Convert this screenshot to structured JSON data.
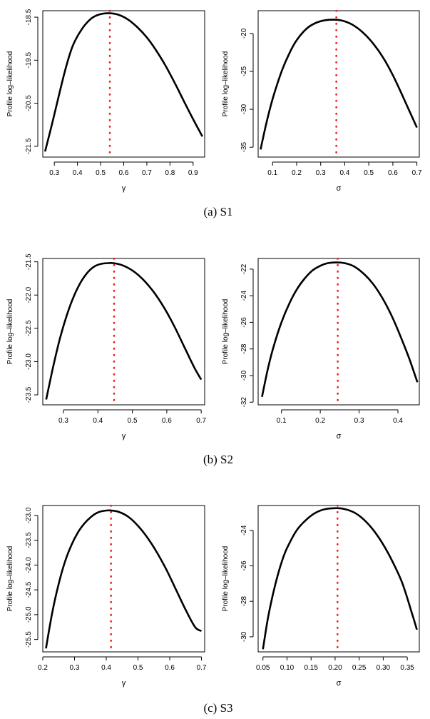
{
  "figure": {
    "ylabel": "Profile log–likelihood",
    "captions": [
      "(a) S1",
      "(b) S2",
      "(c) S3"
    ]
  },
  "colors": {
    "curve": "#000000",
    "mle_line": "#e8231e"
  },
  "chart_data": [
    {
      "id": "S1-gamma",
      "type": "line",
      "xlabel": "γ",
      "ylabel": "Profile log–likelihood",
      "xlim": [
        0.25,
        0.95
      ],
      "ylim": [
        -21.75,
        -18.35
      ],
      "xticks": [
        0.3,
        0.4,
        0.5,
        0.6,
        0.7,
        0.8,
        0.9
      ],
      "xtick_labels": [
        "0.3",
        "0.4",
        "0.5",
        "0.6",
        "0.7",
        "0.8",
        "0.9"
      ],
      "yticks": [
        -18.5,
        -19.5,
        -20.5,
        -21.5
      ],
      "ytick_labels": [
        "-18.5",
        "-19.5",
        "-20.5",
        "-21.5"
      ],
      "x": [
        0.26,
        0.29,
        0.32,
        0.35,
        0.38,
        0.42,
        0.46,
        0.5,
        0.54,
        0.58,
        0.62,
        0.66,
        0.7,
        0.74,
        0.78,
        0.82,
        0.86,
        0.9,
        0.94
      ],
      "y": [
        -21.62,
        -20.98,
        -20.31,
        -19.67,
        -19.16,
        -18.77,
        -18.53,
        -18.43,
        -18.41,
        -18.45,
        -18.56,
        -18.74,
        -18.97,
        -19.27,
        -19.62,
        -20.02,
        -20.45,
        -20.87,
        -21.27
      ],
      "mle": 0.54
    },
    {
      "id": "S1-sigma",
      "type": "line",
      "xlabel": "σ",
      "ylabel": "Profile log–likelihood",
      "xlim": [
        0.04,
        0.71
      ],
      "ylim": [
        -36.3,
        -17.0
      ],
      "xticks": [
        0.1,
        0.2,
        0.3,
        0.4,
        0.5,
        0.6,
        0.7
      ],
      "xtick_labels": [
        "0.1",
        "0.2",
        "0.3",
        "0.4",
        "0.5",
        "0.6",
        "0.7"
      ],
      "yticks": [
        -20,
        -25,
        -30,
        -35
      ],
      "ytick_labels": [
        "-20",
        "-25",
        "-30",
        "-35"
      ],
      "x": [
        0.05,
        0.07,
        0.09,
        0.11,
        0.14,
        0.17,
        0.2,
        0.24,
        0.28,
        0.32,
        0.365,
        0.4,
        0.44,
        0.48,
        0.52,
        0.56,
        0.6,
        0.64,
        0.67,
        0.7
      ],
      "y": [
        -35.3,
        -32.4,
        -29.8,
        -27.6,
        -24.8,
        -22.6,
        -20.9,
        -19.4,
        -18.6,
        -18.25,
        -18.2,
        -18.4,
        -19.0,
        -20.0,
        -21.4,
        -23.2,
        -25.5,
        -28.2,
        -30.3,
        -32.4
      ],
      "mle": 0.365
    },
    {
      "id": "S2-gamma",
      "type": "line",
      "xlabel": "γ",
      "ylabel": "Profile log–likelihood",
      "xlim": [
        0.24,
        0.71
      ],
      "ylim": [
        -23.65,
        -21.45
      ],
      "xticks": [
        0.3,
        0.4,
        0.5,
        0.6,
        0.7
      ],
      "xtick_labels": [
        "0.3",
        "0.4",
        "0.5",
        "0.6",
        "0.7"
      ],
      "yticks": [
        -21.5,
        -22.0,
        -22.5,
        -23.0,
        -23.5
      ],
      "ytick_labels": [
        "-21.5",
        "-22.0",
        "-22.5",
        "-23.0",
        "-23.5"
      ],
      "x": [
        0.25,
        0.27,
        0.29,
        0.31,
        0.33,
        0.35,
        0.37,
        0.39,
        0.41,
        0.43,
        0.445,
        0.47,
        0.5,
        0.53,
        0.56,
        0.59,
        0.62,
        0.65,
        0.68,
        0.7
      ],
      "y": [
        -23.57,
        -23.08,
        -22.65,
        -22.3,
        -22.02,
        -21.81,
        -21.66,
        -21.57,
        -21.53,
        -21.52,
        -21.52,
        -21.55,
        -21.63,
        -21.76,
        -21.94,
        -22.17,
        -22.45,
        -22.77,
        -23.09,
        -23.27
      ],
      "mle": 0.447
    },
    {
      "id": "S2-sigma",
      "type": "line",
      "xlabel": "σ",
      "ylabel": "Profile log–likelihood",
      "xlim": [
        0.04,
        0.455
      ],
      "ylim": [
        -32.2,
        -21.2
      ],
      "xticks": [
        0.1,
        0.2,
        0.3,
        0.4
      ],
      "xtick_labels": [
        "0.1",
        "0.2",
        "0.3",
        "0.4"
      ],
      "yticks": [
        -22,
        -24,
        -26,
        -28,
        -30,
        -32
      ],
      "ytick_labels": [
        "-22",
        "-24",
        "-26",
        "-28",
        "-30",
        "-32"
      ],
      "x": [
        0.05,
        0.065,
        0.08,
        0.1,
        0.12,
        0.14,
        0.16,
        0.18,
        0.2,
        0.22,
        0.245,
        0.27,
        0.29,
        0.31,
        0.33,
        0.35,
        0.37,
        0.39,
        0.41,
        0.43,
        0.45
      ],
      "y": [
        -31.6,
        -29.5,
        -27.8,
        -26.0,
        -24.6,
        -23.5,
        -22.7,
        -22.1,
        -21.75,
        -21.55,
        -21.5,
        -21.6,
        -21.85,
        -22.3,
        -22.9,
        -23.7,
        -24.7,
        -25.9,
        -27.3,
        -28.8,
        -30.5
      ],
      "mle": 0.245
    },
    {
      "id": "S3-gamma",
      "type": "line",
      "xlabel": "γ",
      "ylabel": "Profile log–likelihood",
      "xlim": [
        0.2,
        0.71
      ],
      "ylim": [
        -25.75,
        -22.8
      ],
      "xticks": [
        0.2,
        0.3,
        0.4,
        0.5,
        0.6,
        0.7
      ],
      "xtick_labels": [
        "0.2",
        "0.3",
        "0.4",
        "0.5",
        "0.6",
        "0.7"
      ],
      "yticks": [
        -23.0,
        -23.5,
        -24.0,
        -24.5,
        -25.0,
        -25.5
      ],
      "ytick_labels": [
        "-23.0",
        "-23.5",
        "-24.0",
        "-24.5",
        "-25.0",
        "-25.5"
      ],
      "x": [
        0.21,
        0.23,
        0.25,
        0.27,
        0.29,
        0.31,
        0.33,
        0.35,
        0.37,
        0.39,
        0.415,
        0.44,
        0.47,
        0.5,
        0.53,
        0.56,
        0.59,
        0.62,
        0.65,
        0.68,
        0.7
      ],
      "y": [
        -25.68,
        -24.95,
        -24.38,
        -23.93,
        -23.6,
        -23.35,
        -23.17,
        -23.04,
        -22.95,
        -22.91,
        -22.9,
        -22.93,
        -23.03,
        -23.21,
        -23.45,
        -23.75,
        -24.1,
        -24.5,
        -24.9,
        -25.25,
        -25.33
      ],
      "mle": 0.415
    },
    {
      "id": "S3-sigma",
      "type": "line",
      "xlabel": "σ",
      "ylabel": "Profile log–likelihood",
      "xlim": [
        0.04,
        0.375
      ],
      "ylim": [
        -30.85,
        -22.6
      ],
      "xticks": [
        0.05,
        0.1,
        0.15,
        0.2,
        0.25,
        0.3,
        0.35
      ],
      "xtick_labels": [
        "0.05",
        "0.10",
        "0.15",
        "0.20",
        "0.25",
        "0.30",
        "0.35"
      ],
      "yticks": [
        -24,
        -26,
        -28,
        -30
      ],
      "ytick_labels": [
        "-24",
        "-26",
        "-28",
        "-30"
      ],
      "x": [
        0.05,
        0.06,
        0.07,
        0.08,
        0.09,
        0.1,
        0.12,
        0.14,
        0.16,
        0.18,
        0.205,
        0.22,
        0.24,
        0.26,
        0.28,
        0.3,
        0.32,
        0.34,
        0.36,
        0.37
      ],
      "y": [
        -30.7,
        -29.0,
        -27.7,
        -26.6,
        -25.7,
        -25.0,
        -24.0,
        -23.4,
        -23.0,
        -22.8,
        -22.75,
        -22.8,
        -23.0,
        -23.4,
        -24.0,
        -24.8,
        -25.8,
        -27.0,
        -28.7,
        -29.6
      ],
      "mle": 0.205
    }
  ]
}
